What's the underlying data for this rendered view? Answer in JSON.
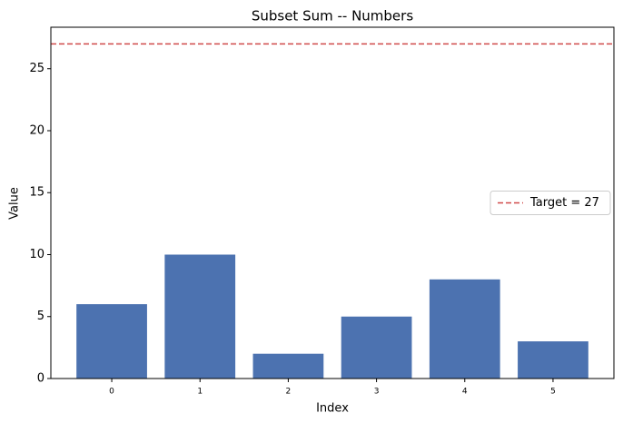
{
  "chart_data": {
    "type": "bar",
    "title": "Subset Sum -- Numbers",
    "x_label": "Index",
    "y_label": "Value",
    "categories": [
      "0",
      "1",
      "2",
      "3",
      "4",
      "5"
    ],
    "values": [
      6,
      10,
      2,
      5,
      8,
      3
    ],
    "color": "#4c72b0",
    "ylim": [
      0,
      28.35
    ],
    "yticks": [
      0,
      5,
      10,
      15,
      20,
      25
    ],
    "grid": false,
    "hlines": [
      {
        "name": "Target = 27",
        "value": 27,
        "color": "#d04a4a",
        "style": "dashed"
      }
    ],
    "legend": "center right"
  }
}
